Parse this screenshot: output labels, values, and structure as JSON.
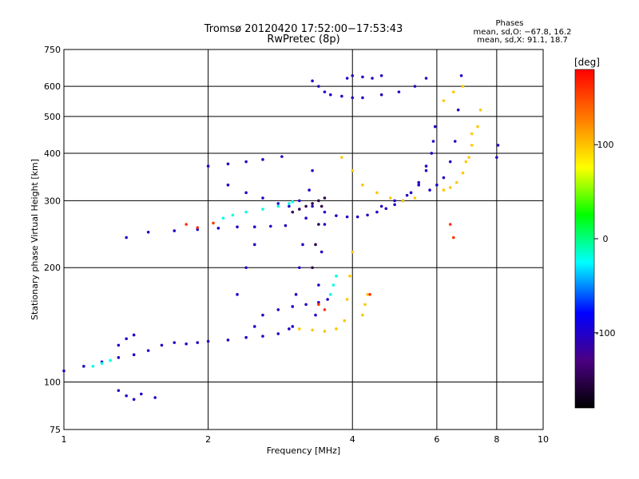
{
  "chart_data": {
    "type": "scatter",
    "title": "Tromsø 20120420 17:52:00−17:53:43",
    "subtitle": "RwPretec (8p)",
    "xlabel": "Frequency [MHz]",
    "ylabel": "Stationary phase Virtual Height [km]",
    "x_scale": "log",
    "y_scale": "log",
    "xlim": [
      1,
      10
    ],
    "ylim": [
      75,
      750
    ],
    "x_ticks": [
      1,
      2,
      4,
      6,
      8,
      10
    ],
    "y_ticks": [
      75,
      100,
      200,
      300,
      400,
      500,
      600,
      750
    ],
    "grid": true,
    "stats": {
      "heading": "Phases",
      "line_o": "mean, sd,O: −67.8, 16.2",
      "line_x": "mean, sd,X:  91.1, 18.7"
    },
    "colorbar": {
      "label": "[deg]",
      "range": [
        -180,
        180
      ],
      "ticks": [
        100,
        0,
        -100
      ],
      "colormap": [
        "#000000",
        "#4b0082",
        "#0000ff",
        "#00ffff",
        "#00ff00",
        "#ffff00",
        "#ff8000",
        "#ff0000"
      ]
    },
    "series": [
      {
        "color_deg": -100,
        "traces": [
          {
            "x": [
              1.0,
              1.1,
              1.2,
              1.3,
              1.4,
              1.5,
              1.6,
              1.7,
              1.8,
              1.9,
              2.0,
              2.2,
              2.4,
              2.6,
              2.8,
              2.95
            ],
            "y": [
              107,
              110,
              113,
              116,
              118,
              121,
              125,
              127,
              126,
              127,
              128,
              129,
              131,
              132,
              134,
              138
            ]
          },
          {
            "x": [
              1.35,
              1.5,
              1.7,
              1.9,
              2.1,
              2.3,
              2.5,
              2.7,
              2.9
            ],
            "y": [
              240,
              248,
              250,
              252,
              254,
              256,
              256,
              257,
              258
            ]
          },
          {
            "x": [
              2.0,
              2.2,
              2.4,
              2.6,
              2.85
            ],
            "y": [
              370,
              375,
              380,
              385,
              392
            ]
          },
          {
            "x": [
              2.2,
              2.4,
              2.6,
              2.8,
              2.95
            ],
            "y": [
              330,
              315,
              305,
              295,
              290
            ]
          },
          {
            "x": [
              3.1,
              3.3,
              3.5,
              3.7,
              3.9,
              4.1,
              4.3,
              4.5,
              4.7,
              4.9,
              5.1,
              5.3,
              5.5,
              5.7,
              5.9
            ],
            "y": [
              300,
              290,
              280,
              274,
              272,
              272,
              275,
              280,
              286,
              293,
              300,
              315,
              335,
              370,
              430
            ]
          },
          {
            "x": [
              4.6,
              4.9,
              5.2,
              5.5,
              5.7,
              5.85,
              5.95
            ],
            "y": [
              290,
              300,
              310,
              330,
              360,
              400,
              470
            ]
          },
          {
            "x": [
              5.8,
              6.0,
              6.2,
              6.4,
              6.55,
              6.65,
              6.75
            ],
            "y": [
              320,
              330,
              345,
              380,
              430,
              520,
              640
            ]
          },
          {
            "x": [
              3.3,
              3.4,
              3.5,
              3.6,
              3.8,
              4.0,
              4.2,
              4.6,
              5.0,
              5.4,
              5.7
            ],
            "y": [
              620,
              600,
              580,
              570,
              565,
              560,
              560,
              570,
              580,
              600,
              630
            ]
          },
          {
            "x": [
              3.9,
              4.0,
              4.2,
              4.4,
              4.6
            ],
            "y": [
              630,
              640,
              635,
              630,
              640
            ]
          },
          {
            "x": [
              3.0,
              3.05,
              3.1,
              3.15,
              3.2,
              3.25,
              3.3
            ],
            "y": [
              140,
              170,
              200,
              230,
              270,
              320,
              360
            ]
          },
          {
            "x": [
              3.35,
              3.4,
              3.45,
              3.5
            ],
            "y": [
              150,
              180,
              220,
              260
            ]
          },
          {
            "x": [
              2.5,
              2.6,
              2.8,
              3.0,
              3.2,
              3.4,
              3.55
            ],
            "y": [
              140,
              150,
              155,
              158,
              160,
              162,
              165
            ]
          },
          {
            "x": [
              2.3,
              2.4,
              2.5
            ],
            "y": [
              170,
              200,
              230
            ]
          },
          {
            "x": [
              1.3,
              1.35,
              1.4,
              1.45,
              1.55
            ],
            "y": [
              95,
              92,
              90,
              93,
              91
            ]
          },
          {
            "x": [
              1.3,
              1.35,
              1.4
            ],
            "y": [
              125,
              130,
              133
            ]
          },
          {
            "x": [
              8.0,
              8.05
            ],
            "y": [
              390,
              420
            ]
          }
        ]
      },
      {
        "color_deg": 100,
        "traces": [
          {
            "x": [
              3.1,
              3.3,
              3.5,
              3.7,
              3.85,
              3.9,
              3.95,
              4.0
            ],
            "y": [
              138,
              137,
              136,
              138,
              145,
              165,
              190,
              220
            ]
          },
          {
            "x": [
              3.8,
              4.0,
              4.2,
              4.5,
              4.8,
              5.1,
              5.4
            ],
            "y": [
              390,
              360,
              330,
              315,
              305,
              300,
              305
            ]
          },
          {
            "x": [
              6.2,
              6.4,
              6.6,
              6.8,
              7.0,
              7.1
            ],
            "y": [
              320,
              325,
              335,
              355,
              390,
              450
            ]
          },
          {
            "x": [
              6.9,
              7.1,
              7.3,
              7.4
            ],
            "y": [
              380,
              420,
              470,
              520
            ]
          },
          {
            "x": [
              6.2,
              6.5,
              6.8
            ],
            "y": [
              550,
              580,
              600
            ]
          },
          {
            "x": [
              4.2,
              4.25,
              4.3
            ],
            "y": [
              150,
              160,
              170
            ]
          }
        ]
      },
      {
        "color_deg": -20,
        "traces": [
          {
            "x": [
              2.15,
              2.25,
              2.4,
              2.6,
              2.8,
              2.95,
              3.0
            ],
            "y": [
              270,
              275,
              280,
              285,
              290,
              295,
              298
            ]
          },
          {
            "x": [
              1.15,
              1.2,
              1.25
            ],
            "y": [
              110,
              112,
              114
            ]
          },
          {
            "x": [
              3.6,
              3.65,
              3.7
            ],
            "y": [
              170,
              180,
              190
            ]
          }
        ]
      },
      {
        "color_deg": 160,
        "traces": [
          {
            "x": [
              1.8,
              1.9,
              2.05,
              3.4,
              3.5,
              4.35,
              6.4,
              6.5
            ],
            "y": [
              260,
              255,
              262,
              160,
              155,
              170,
              260,
              240
            ]
          }
        ]
      },
      {
        "color_deg": -150,
        "traces": [
          {
            "x": [
              3.0,
              3.1,
              3.2,
              3.3,
              3.4,
              3.5
            ],
            "y": [
              280,
              285,
              290,
              295,
              300,
              305
            ]
          },
          {
            "x": [
              3.3,
              3.35,
              3.4,
              3.45
            ],
            "y": [
              200,
              230,
              260,
              290
            ]
          }
        ]
      }
    ]
  }
}
